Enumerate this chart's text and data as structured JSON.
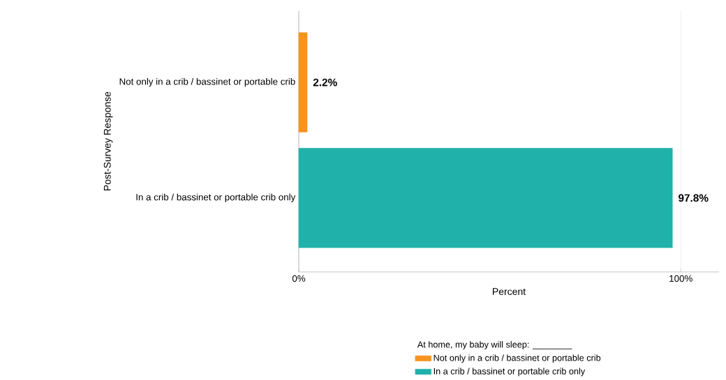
{
  "chart_data": {
    "type": "bar",
    "orientation": "horizontal",
    "categories": [
      "Not only in a crib / bassinet or portable crib",
      "In a crib / bassinet or portable crib only"
    ],
    "series": [
      {
        "name": "Not only in a crib / bassinet or portable crib",
        "color": "#f7941d",
        "values": [
          2.2,
          null
        ],
        "value_labels": [
          "2.2%",
          null
        ]
      },
      {
        "name": "In a crib / bassinet or portable crib only",
        "color": "#20b2aa",
        "values": [
          null,
          97.8
        ],
        "value_labels": [
          null,
          "97.8%"
        ]
      }
    ],
    "xlim": [
      0,
      110
    ],
    "xticks": [
      {
        "value": 0,
        "label": "0%"
      },
      {
        "value": 100,
        "label": "100%"
      }
    ],
    "xlabel": "Percent",
    "ylabel": "Post-Survey Response",
    "legend_title": "At home, my baby will sleep: ________",
    "legend": "bottom",
    "grid": "x"
  }
}
